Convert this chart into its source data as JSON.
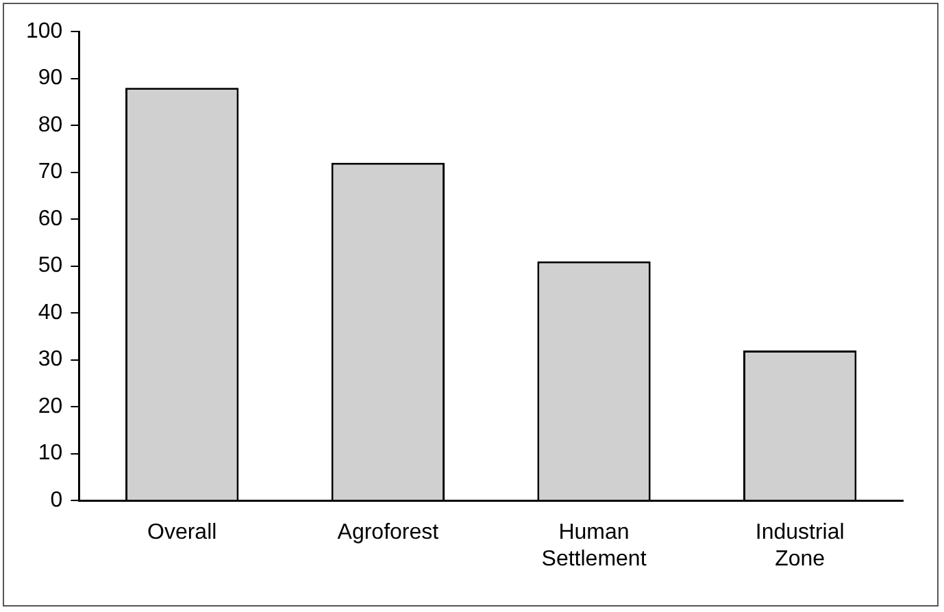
{
  "chart_data": {
    "type": "bar",
    "categories": [
      "Overall",
      "Agroforest",
      "Human Settlement",
      "Industrial Zone"
    ],
    "values": [
      88,
      72,
      51,
      32
    ],
    "color": "#d0d0d0",
    "ylim": [
      0,
      100
    ],
    "yticks": [
      0,
      10,
      20,
      30,
      40,
      50,
      60,
      70,
      80,
      90,
      100
    ],
    "grid": false,
    "legend": false
  }
}
